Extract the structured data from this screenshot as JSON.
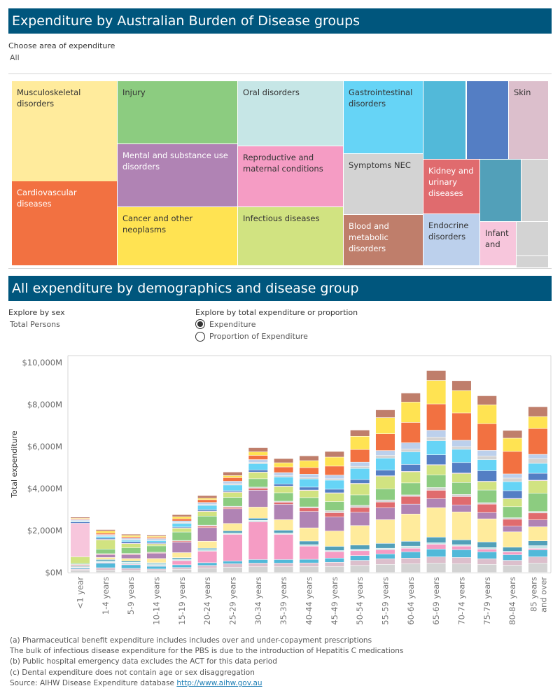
{
  "section1": {
    "title": "Expenditure by Australian Burden of Disease groups",
    "filter_label": "Choose area of expenditure",
    "filter_value": "All"
  },
  "treemap": {
    "tiles": [
      {
        "label": "Musculoskeletal disorders",
        "color": "#ffeb9c"
      },
      {
        "label": "Cardiovascular diseases",
        "color": "#f27141"
      },
      {
        "label": "Injury",
        "color": "#8ccc80"
      },
      {
        "label": "Mental and substance use disorders",
        "color": "#b083b4"
      },
      {
        "label": "Cancer and other neoplasms",
        "color": "#ffe352"
      },
      {
        "label": "Oral disorders",
        "color": "#c6e6e6"
      },
      {
        "label": "Reproductive and maternal conditions",
        "color": "#f59cc4"
      },
      {
        "label": "Infectious diseases",
        "color": "#d1e381"
      },
      {
        "label": "Gastrointestinal disorders",
        "color": "#66d4f6"
      },
      {
        "label": "Symptoms NEC",
        "color": "#d3d3d3"
      },
      {
        "label": "Blood and metabolic disorders",
        "color": "#bf7e6b"
      },
      {
        "label": "",
        "color": "#52b9d9"
      },
      {
        "label": "",
        "color": "#547ec4"
      },
      {
        "label": "Skin",
        "color": "#dcbfcc"
      },
      {
        "label": "Kidney and urinary diseases",
        "color": "#e06b6e"
      },
      {
        "label": "Endocrine disorders",
        "color": "#bcd0ec"
      },
      {
        "label": "",
        "color": "#52a0b9"
      },
      {
        "label": "",
        "color": "#d3d3d3"
      },
      {
        "label": "Infant and",
        "color": "#f7c6dc"
      },
      {
        "label": "",
        "color": "#d3d3d3"
      },
      {
        "label": "",
        "color": "#d3d3d3"
      }
    ]
  },
  "section2": {
    "title": "All expenditure by demographics and disease group",
    "sex_label": "Explore by sex",
    "sex_value": "Total Persons",
    "mode_label": "Explore by total expenditure or proportion",
    "mode_options": [
      {
        "label": "Expenditure",
        "selected": true
      },
      {
        "label": "Proportion of Expenditure",
        "selected": false
      }
    ]
  },
  "chart_data": {
    "type": "bar",
    "stacked": true,
    "ylabel": "Total expenditure",
    "xlabel": "",
    "ylim": [
      0,
      10000
    ],
    "y_unit": "$M",
    "yticks": [
      "$0M",
      "$2,000M",
      "$4,000M",
      "$6,000M",
      "$8,000M",
      "$10,000M"
    ],
    "grid": false,
    "categories": [
      "<1 year",
      "1-4 years",
      "5-9 years",
      "10-14 years",
      "15-19 years",
      "20-24 years",
      "25-29 years",
      "30-34 years",
      "35-39 years",
      "40-44 years",
      "45-49 years",
      "50-54 years",
      "55-59 years",
      "60-64 years",
      "65-69 years",
      "70-74 years",
      "75-79 years",
      "80-84 years",
      "85 years and over"
    ],
    "series": [
      {
        "name": "Symptoms NEC",
        "color": "#d3d3d3",
        "values": [
          100,
          110,
          100,
          100,
          150,
          200,
          240,
          270,
          270,
          280,
          280,
          330,
          380,
          410,
          440,
          410,
          380,
          340,
          440
        ]
      },
      {
        "name": "Skin",
        "color": "#dcbfcc",
        "values": [
          50,
          110,
          90,
          60,
          80,
          130,
          170,
          170,
          170,
          170,
          200,
          240,
          270,
          270,
          300,
          300,
          270,
          230,
          300
        ]
      },
      {
        "name": "",
        "color": "#52b9d9",
        "values": [
          50,
          220,
          170,
          130,
          130,
          130,
          130,
          170,
          170,
          170,
          200,
          230,
          230,
          300,
          370,
          370,
          330,
          270,
          330
        ]
      },
      {
        "name": "Reproductive and maternal conditions",
        "color": "#f59cc4",
        "values": [
          30,
          30,
          20,
          30,
          200,
          550,
          1270,
          1800,
          1200,
          630,
          310,
          230,
          200,
          170,
          230,
          170,
          130,
          130,
          70
        ]
      },
      {
        "name": "Oral disorders",
        "color": "#c6e6e6",
        "values": [
          20,
          80,
          100,
          100,
          80,
          80,
          70,
          70,
          70,
          70,
          50,
          70,
          70,
          100,
          70,
          70,
          70,
          30,
          130
        ]
      },
      {
        "name": "",
        "color": "#52a0b9",
        "values": [
          30,
          60,
          60,
          40,
          60,
          60,
          100,
          100,
          130,
          170,
          200,
          200,
          230,
          230,
          270,
          230,
          270,
          200,
          230
        ]
      },
      {
        "name": "Musculoskeletal disorders",
        "color": "#ffeb9c",
        "values": [
          30,
          100,
          120,
          200,
          240,
          330,
          350,
          530,
          500,
          630,
          730,
          930,
          1130,
          1300,
          1400,
          1330,
          1100,
          730,
          670
        ]
      },
      {
        "name": "Mental and substance use disorders",
        "color": "#b083b4",
        "values": [
          30,
          130,
          180,
          250,
          500,
          650,
          700,
          800,
          730,
          780,
          670,
          630,
          570,
          470,
          430,
          330,
          300,
          270,
          330
        ]
      },
      {
        "name": "Kidney and urinary diseases",
        "color": "#e06b6e",
        "values": [
          30,
          30,
          30,
          30,
          50,
          70,
          70,
          100,
          100,
          170,
          200,
          230,
          270,
          370,
          400,
          400,
          400,
          330,
          330
        ]
      },
      {
        "name": "",
        "color": "#d3d3d3",
        "values": [
          20,
          20,
          30,
          20,
          30,
          50,
          50,
          50,
          50,
          50,
          100,
          100,
          100,
          70,
          130,
          100,
          70,
          70,
          70
        ]
      },
      {
        "name": "Injury",
        "color": "#8ccc80",
        "values": [
          50,
          220,
          270,
          300,
          400,
          430,
          420,
          400,
          400,
          440,
          430,
          500,
          530,
          570,
          600,
          570,
          600,
          530,
          870
        ]
      },
      {
        "name": "Infectious diseases",
        "color": "#d1e381",
        "values": [
          300,
          440,
          200,
          100,
          180,
          220,
          240,
          300,
          300,
          340,
          400,
          530,
          600,
          530,
          470,
          430,
          400,
          370,
          600
        ]
      },
      {
        "name": "Infant and",
        "color": "#f7c6dc",
        "values": [
          1600,
          20,
          10,
          10,
          20,
          20,
          20,
          20,
          20,
          20,
          20,
          20,
          20,
          20,
          20,
          20,
          20,
          20,
          20
        ]
      },
      {
        "name": "",
        "color": "#547ec4",
        "values": [
          60,
          60,
          80,
          60,
          40,
          70,
          60,
          100,
          100,
          140,
          170,
          180,
          270,
          330,
          470,
          500,
          500,
          370,
          330
        ]
      },
      {
        "name": "Gastrointestinal disorders",
        "color": "#66d4f6",
        "values": [
          30,
          80,
          70,
          80,
          170,
          200,
          270,
          300,
          330,
          390,
          430,
          530,
          570,
          600,
          670,
          630,
          530,
          430,
          470
        ]
      },
      {
        "name": "",
        "color": "#d3d3d3",
        "values": [
          30,
          30,
          30,
          30,
          40,
          40,
          60,
          60,
          60,
          60,
          70,
          100,
          130,
          130,
          170,
          130,
          170,
          170,
          230
        ]
      },
      {
        "name": "Endocrine disorders",
        "color": "#bcd0ec",
        "values": [
          50,
          60,
          70,
          70,
          80,
          100,
          120,
          130,
          150,
          170,
          170,
          200,
          230,
          300,
          330,
          300,
          270,
          200,
          200
        ]
      },
      {
        "name": "Cardiovascular diseases",
        "color": "#f27141",
        "values": [
          40,
          70,
          60,
          60,
          100,
          130,
          170,
          200,
          270,
          310,
          430,
          600,
          800,
          970,
          1250,
          1300,
          1270,
          1070,
          1230
        ]
      },
      {
        "name": "Cancer and other neoplasms",
        "color": "#ffe352",
        "values": [
          30,
          100,
          70,
          50,
          100,
          70,
          100,
          170,
          200,
          330,
          430,
          630,
          770,
          970,
          1120,
          1070,
          900,
          630,
          570
        ]
      },
      {
        "name": "Blood and metabolic disorders",
        "color": "#bf7e6b",
        "values": [
          50,
          70,
          60,
          60,
          100,
          130,
          170,
          200,
          200,
          230,
          270,
          300,
          370,
          430,
          470,
          470,
          430,
          370,
          470
        ]
      }
    ]
  },
  "footnotes": {
    "a": "(a) Pharmaceutical benefit expenditure includes includes over and under-copayment prescriptions",
    "a2": "The bulk of infectious disease expenditure for the PBS is due to the introduction of Hepatitis C medications",
    "b": "(b) Public hospital emergency data excludes the ACT for this data period",
    "c": "(c) Dental expenditure does not contain age or sex disaggregation",
    "source_prefix": "Source: AIHW Disease Expenditure database ",
    "source_link": "http://www.aihw.gov.au"
  }
}
